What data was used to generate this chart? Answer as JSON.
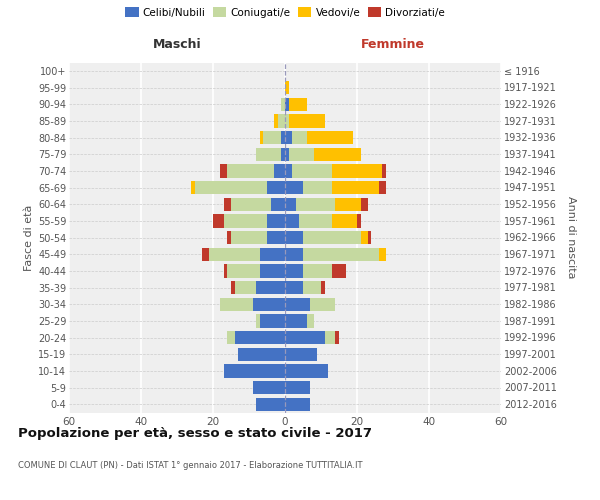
{
  "age_groups": [
    "0-4",
    "5-9",
    "10-14",
    "15-19",
    "20-24",
    "25-29",
    "30-34",
    "35-39",
    "40-44",
    "45-49",
    "50-54",
    "55-59",
    "60-64",
    "65-69",
    "70-74",
    "75-79",
    "80-84",
    "85-89",
    "90-94",
    "95-99",
    "100+"
  ],
  "birth_years": [
    "2012-2016",
    "2007-2011",
    "2002-2006",
    "1997-2001",
    "1992-1996",
    "1987-1991",
    "1982-1986",
    "1977-1981",
    "1972-1976",
    "1967-1971",
    "1962-1966",
    "1957-1961",
    "1952-1956",
    "1947-1951",
    "1942-1946",
    "1937-1941",
    "1932-1936",
    "1927-1931",
    "1922-1926",
    "1917-1921",
    "≤ 1916"
  ],
  "male_celibe": [
    8,
    9,
    17,
    13,
    14,
    7,
    9,
    8,
    7,
    7,
    5,
    5,
    4,
    5,
    3,
    1,
    1,
    0,
    0,
    0,
    0
  ],
  "male_coniugato": [
    0,
    0,
    0,
    0,
    2,
    1,
    9,
    6,
    9,
    14,
    10,
    12,
    11,
    20,
    13,
    7,
    5,
    2,
    1,
    0,
    0
  ],
  "male_vedovo": [
    0,
    0,
    0,
    0,
    0,
    0,
    0,
    0,
    0,
    0,
    0,
    0,
    0,
    1,
    0,
    0,
    1,
    1,
    0,
    0,
    0
  ],
  "male_divorziato": [
    0,
    0,
    0,
    0,
    0,
    0,
    0,
    1,
    1,
    2,
    1,
    3,
    2,
    0,
    2,
    0,
    0,
    0,
    0,
    0,
    0
  ],
  "female_celibe": [
    7,
    7,
    12,
    9,
    11,
    6,
    7,
    5,
    5,
    5,
    5,
    4,
    3,
    5,
    2,
    1,
    2,
    0,
    1,
    0,
    0
  ],
  "female_coniugata": [
    0,
    0,
    0,
    0,
    3,
    2,
    7,
    5,
    8,
    21,
    16,
    9,
    11,
    8,
    11,
    7,
    4,
    1,
    0,
    0,
    0
  ],
  "female_vedova": [
    0,
    0,
    0,
    0,
    0,
    0,
    0,
    0,
    0,
    2,
    2,
    7,
    7,
    13,
    14,
    13,
    13,
    10,
    5,
    1,
    0
  ],
  "female_divorziata": [
    0,
    0,
    0,
    0,
    1,
    0,
    0,
    1,
    4,
    0,
    1,
    1,
    2,
    2,
    1,
    0,
    0,
    0,
    0,
    0,
    0
  ],
  "color_celibe": "#4472c4",
  "color_coniugato": "#c5d9a0",
  "color_vedovo": "#ffc000",
  "color_divorziato": "#c0392b",
  "title": "Popolazione per età, sesso e stato civile - 2017",
  "subtitle": "COMUNE DI CLAUT (PN) - Dati ISTAT 1° gennaio 2017 - Elaborazione TUTTITALIA.IT",
  "label_maschi": "Maschi",
  "label_femmine": "Femmine",
  "ylabel_left": "Fasce di età",
  "ylabel_right": "Anni di nascita",
  "legend_labels": [
    "Celibi/Nubili",
    "Coniugati/e",
    "Vedovi/e",
    "Divorziati/e"
  ],
  "xlim": 60
}
